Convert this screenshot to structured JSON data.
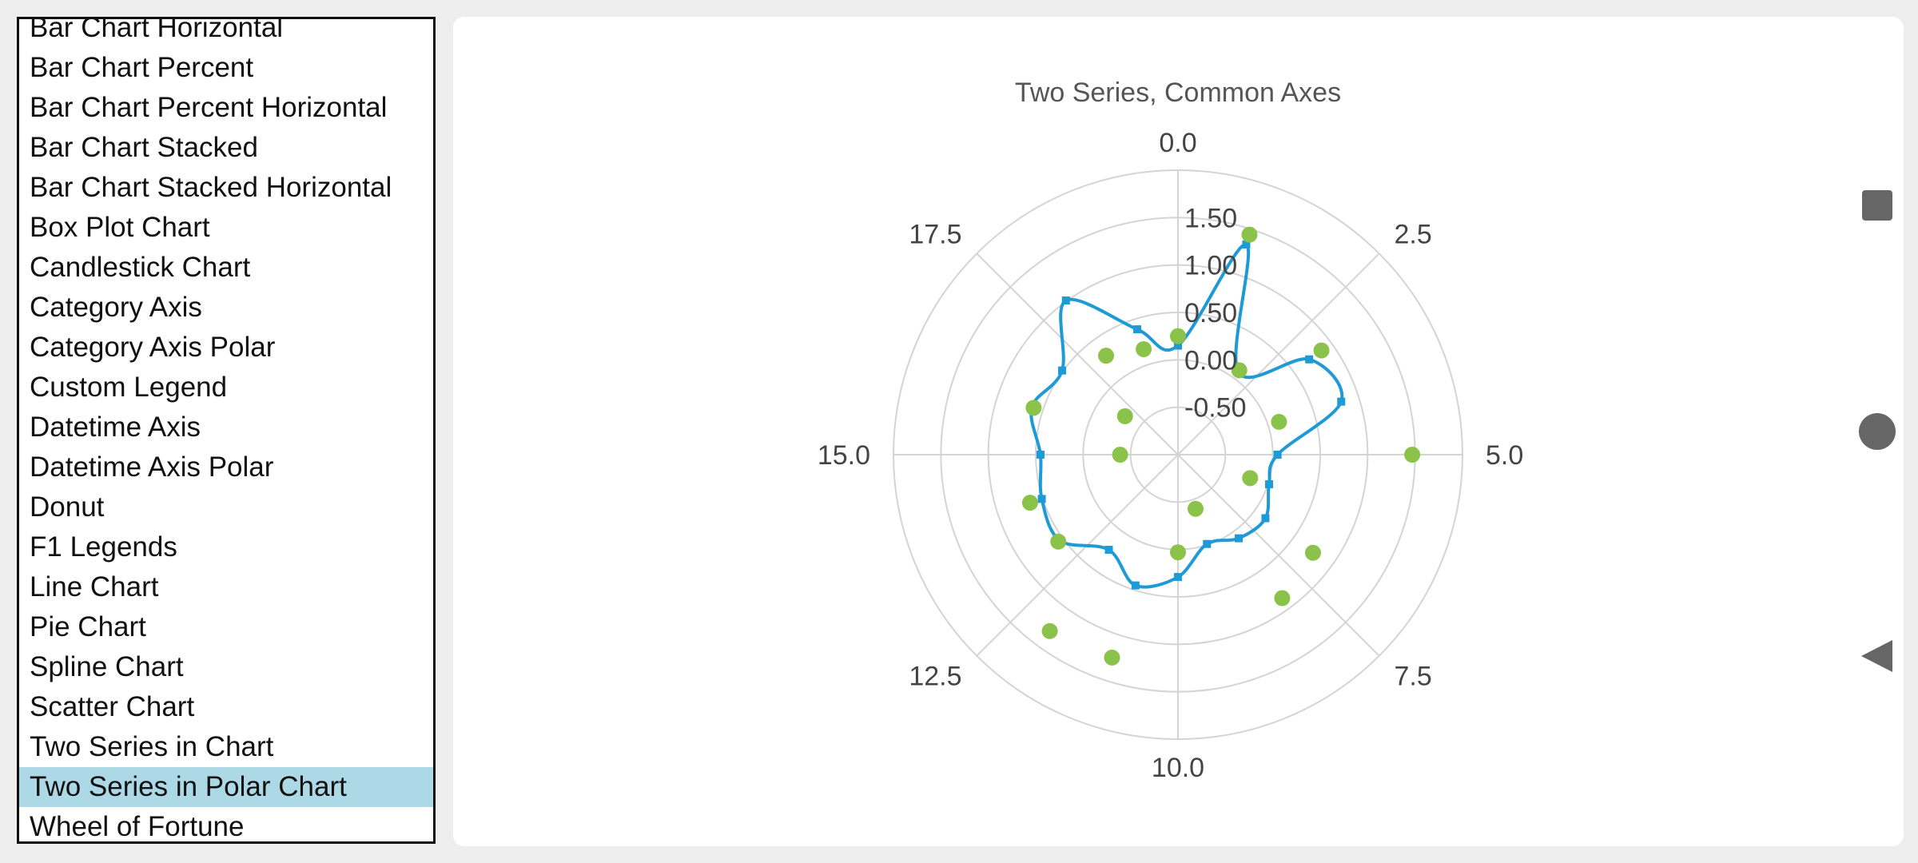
{
  "list": {
    "items": [
      "Bar Chart Horizontal",
      "Bar Chart Percent",
      "Bar Chart Percent Horizontal",
      "Bar Chart Stacked",
      "Bar Chart Stacked Horizontal",
      "Box Plot Chart",
      "Candlestick Chart",
      "Category Axis",
      "Category Axis Polar",
      "Custom Legend",
      "Datetime Axis",
      "Datetime Axis Polar",
      "Donut",
      "F1 Legends",
      "Line Chart",
      "Pie Chart",
      "Spline Chart",
      "Scatter Chart",
      "Two Series in Chart",
      "Two Series in Polar Chart",
      "Wheel of Fortune"
    ],
    "selected_index": 19
  },
  "nav": {
    "recent_icon": "square-icon",
    "home_icon": "circle-icon",
    "back_icon": "triangle-back-icon"
  },
  "colors": {
    "spline": "#1e9ad6",
    "scatter": "#8bc34a",
    "grid": "#d4d4d4",
    "selected": "#add8e6",
    "nav": "#666666"
  },
  "chart_data": {
    "type": "polar",
    "title": "Two Series, Common Axes",
    "angle_axis": {
      "min": 0,
      "max": 20,
      "tick_labels": [
        "0.0",
        "2.5",
        "5.0",
        "7.5",
        "10.0",
        "12.5",
        "15.0",
        "17.5"
      ]
    },
    "radial_axis": {
      "min": -1,
      "max": 2,
      "tick_labels": [
        "-0.50",
        "0.00",
        "0.50",
        "1.00",
        "1.50"
      ]
    },
    "grid": true,
    "series": [
      {
        "type": "spline",
        "color": "#1e9ad6",
        "points": [
          [
            0,
            0.15
          ],
          [
            1,
            1.33
          ],
          [
            2,
            0.08
          ],
          [
            3,
            0.71
          ],
          [
            4,
            0.81
          ],
          [
            5,
            0.05
          ],
          [
            6,
            0.01
          ],
          [
            7,
            0.14
          ],
          [
            8,
            0.09
          ],
          [
            9,
            -0.01
          ],
          [
            10,
            0.29
          ],
          [
            11,
            0.45
          ],
          [
            12,
            0.24
          ],
          [
            13,
            0.54
          ],
          [
            14,
            0.51
          ],
          [
            15,
            0.45
          ],
          [
            16,
            0.62
          ],
          [
            17,
            0.51
          ],
          [
            18,
            1.01
          ],
          [
            19,
            0.39
          ]
        ]
      },
      {
        "type": "scatter",
        "color": "#8bc34a",
        "points": [
          [
            0,
            0.25
          ],
          [
            1,
            1.44
          ],
          [
            2,
            0.1
          ],
          [
            3,
            0.87
          ],
          [
            4,
            0.12
          ],
          [
            5,
            1.47
          ],
          [
            6,
            -0.2
          ],
          [
            7,
            0.76
          ],
          [
            8,
            0.87
          ],
          [
            9,
            -0.4
          ],
          [
            10,
            0.03
          ],
          [
            11,
            1.25
          ],
          [
            12,
            1.3
          ],
          [
            13,
            0.56
          ],
          [
            14,
            0.64
          ],
          [
            15,
            -0.39
          ],
          [
            16,
            0.6
          ],
          [
            17,
            -0.31
          ],
          [
            18,
            0.29
          ],
          [
            19,
            0.17
          ]
        ]
      }
    ]
  }
}
